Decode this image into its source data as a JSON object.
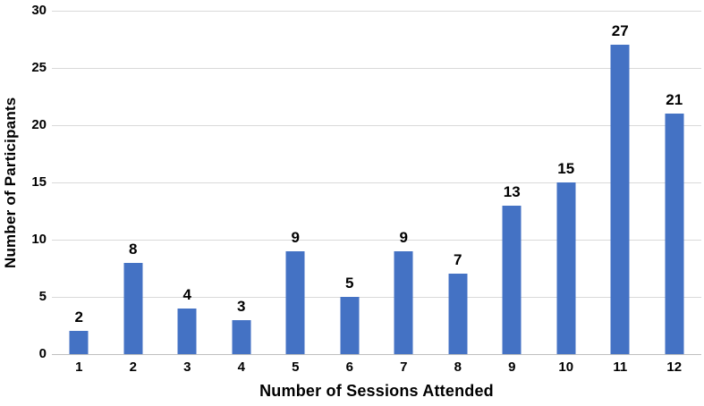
{
  "chart_data": {
    "type": "bar",
    "title": "",
    "categories": [
      "1",
      "2",
      "3",
      "4",
      "5",
      "6",
      "7",
      "8",
      "9",
      "10",
      "11",
      "12"
    ],
    "values": [
      2,
      8,
      4,
      3,
      9,
      5,
      9,
      7,
      13,
      15,
      27,
      21
    ],
    "xlabel": "Number of Sessions Attended",
    "ylabel": "Number of Participants",
    "ylim": [
      0,
      30
    ],
    "yticks": [
      0,
      5,
      10,
      15,
      20,
      25,
      30
    ],
    "grid": "horizontal",
    "legend": "none",
    "bar_color": "#4472c4",
    "gridline_color": "#d9d9d9",
    "text_color": "#000000"
  }
}
